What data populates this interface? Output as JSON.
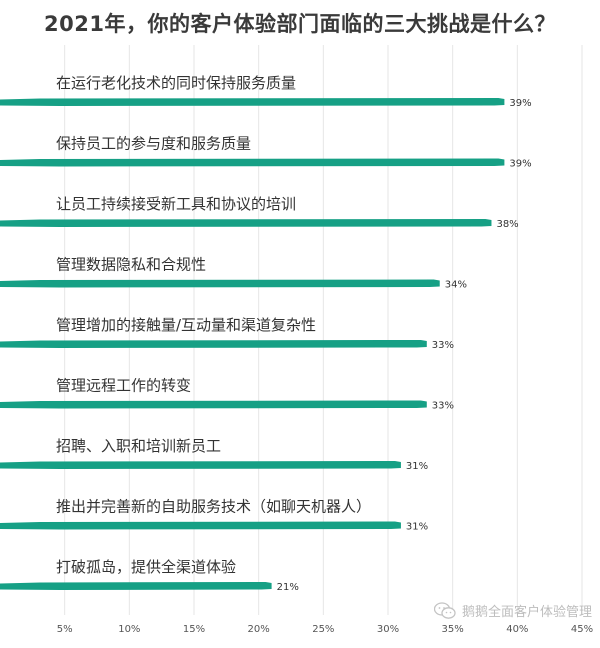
{
  "chart_data": {
    "type": "bar",
    "orientation": "horizontal",
    "title": "2021年，你的客户体验部门面临的三大挑战是什么？",
    "categories": [
      "在运行老化技术的同时保持服务质量",
      "保持员工的参与度和服务质量",
      "让员工持续接受新工具和协议的培训",
      "管理数据隐私和合规性",
      "管理增加的接触量/互动量和渠道复杂性",
      "管理远程工作的转变",
      "招聘、入职和培训新员工",
      "推出并完善新的自助服务技术（如聊天机器人）",
      "打破孤岛，提供全渠道体验"
    ],
    "values": [
      39,
      39,
      38,
      34,
      33,
      33,
      31,
      31,
      21
    ],
    "value_labels": [
      "39%",
      "39%",
      "38%",
      "34%",
      "33%",
      "33%",
      "31%",
      "31%",
      "21%"
    ],
    "xlim": [
      0,
      45
    ],
    "x_ticks": [
      5,
      10,
      15,
      20,
      25,
      30,
      35,
      40,
      45
    ],
    "x_tick_labels": [
      "5%",
      "10%",
      "15%",
      "20%",
      "25%",
      "30%",
      "35%",
      "40%",
      "45%"
    ],
    "grid": true,
    "bar_color": "#16a085"
  },
  "watermark": {
    "text": "鹅鹅全面客户体验管理",
    "icon": "wechat-icon"
  }
}
